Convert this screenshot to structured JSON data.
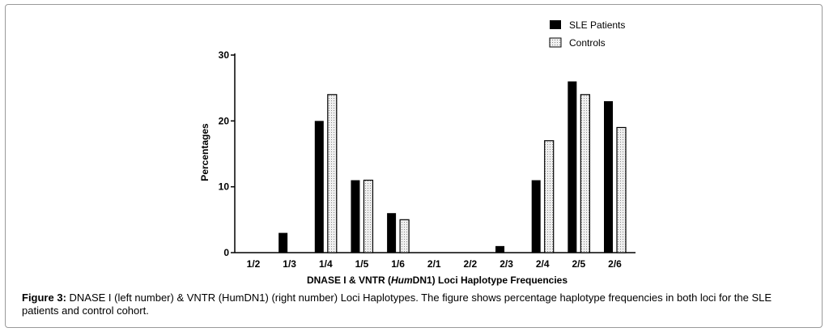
{
  "caption": {
    "label": "Figure 3:",
    "text": " DNASE I (left number) & VNTR (HumDN1) (right number) Loci Haplotypes. The figure shows percentage haplotype frequencies in both loci for the SLE patients and control cohort."
  },
  "chart_data": {
    "type": "bar",
    "categories": [
      "1/2",
      "1/3",
      "1/4",
      "1/5",
      "1/6",
      "2/1",
      "2/2",
      "2/3",
      "2/4",
      "2/5",
      "2/6"
    ],
    "series": [
      {
        "name": "SLE Patients",
        "color": "#000000",
        "pattern": "solid",
        "values": [
          0,
          3,
          20,
          11,
          6,
          0,
          0,
          1,
          11,
          26,
          23
        ]
      },
      {
        "name": "Controls",
        "color": "#e6e6e6",
        "pattern": "dotted",
        "values": [
          0,
          0,
          24,
          11,
          5,
          0,
          0,
          0,
          17,
          24,
          19
        ]
      }
    ],
    "xlabel_parts": [
      "DNASE I & VNTR (",
      "Hum",
      "DN1) Loci Haplotype Frequencies"
    ],
    "ylabel": "Percentages",
    "ylim": [
      0,
      30
    ],
    "yticks": [
      0,
      10,
      20,
      30
    ],
    "grid": false,
    "legend_position": "top-right"
  }
}
